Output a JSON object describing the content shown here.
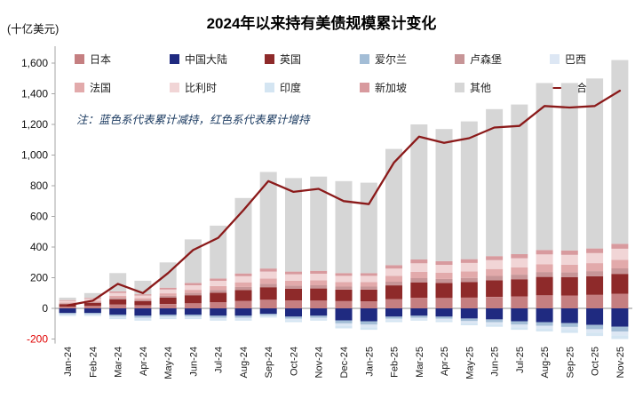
{
  "header": {
    "title": "2024年以来持有美债规模累计变化",
    "unit_label": "(十亿美元)",
    "note": "注：蓝色系代表累计减持，红色系代表累计增持"
  },
  "chart_data": {
    "type": "bar",
    "subtype": "stacked-bar-with-total-line",
    "title": "2024年以来持有美债规模累计变化",
    "ylabel": "(十亿美元)",
    "legend_position": "top",
    "grid": false,
    "axis": {
      "ymin": -200,
      "ymax": 1600,
      "ystep": 200,
      "tick_color": "#111111",
      "negative_tick_color": "#e00000"
    },
    "categories": [
      "Jan-24",
      "Feb-24",
      "Mar-24",
      "Apr-24",
      "May-24",
      "Jun-24",
      "Jul-24",
      "Aug-24",
      "Sep-24",
      "Oct-24",
      "Nov-24",
      "Dec-24",
      "Jan-25",
      "Feb-25",
      "Mar-25",
      "Apr-25",
      "May-25",
      "Jun-25",
      "Jul-25",
      "Aug-25",
      "Sep-25",
      "Oct-25",
      "Nov-25"
    ],
    "series": [
      {
        "name": "日本",
        "color": "#c57f81",
        "values": [
          12,
          16,
          25,
          20,
          28,
          34,
          40,
          48,
          56,
          52,
          52,
          48,
          46,
          60,
          70,
          68,
          70,
          75,
          78,
          85,
          84,
          88,
          95
        ]
      },
      {
        "name": "中国大陆",
        "color": "#1f2a80",
        "values": [
          -30,
          -30,
          -42,
          -48,
          -42,
          -42,
          -48,
          -48,
          -36,
          -54,
          -48,
          -78,
          -84,
          -54,
          -48,
          -54,
          -66,
          -72,
          -84,
          -90,
          -96,
          -108,
          -120
        ]
      },
      {
        "name": "英国",
        "color": "#8e2a2a",
        "values": [
          16,
          20,
          34,
          28,
          42,
          52,
          62,
          72,
          82,
          76,
          78,
          74,
          76,
          90,
          100,
          98,
          102,
          108,
          112,
          120,
          119,
          122,
          130
        ]
      },
      {
        "name": "爱尔兰",
        "color": "#a3bdd6",
        "values": [
          -8,
          -8,
          -11,
          -13,
          -11,
          -11,
          -13,
          -13,
          -10,
          -14,
          -13,
          -20,
          -22,
          -14,
          -13,
          -14,
          -17,
          -18,
          -22,
          -23,
          -25,
          -28,
          -31
        ]
      },
      {
        "name": "卢森堡",
        "color": "#c79597",
        "values": [
          5,
          6,
          10,
          8,
          12,
          15,
          18,
          20,
          22,
          20,
          21,
          20,
          20,
          24,
          27,
          26,
          27,
          29,
          30,
          32,
          32,
          33,
          36
        ]
      },
      {
        "name": "巴西",
        "color": "#dde7f4",
        "values": [
          -6,
          -6,
          -8,
          -9,
          -8,
          -8,
          -9,
          -9,
          -7,
          -11,
          -9,
          -16,
          -17,
          -11,
          -10,
          -11,
          -13,
          -15,
          -17,
          -18,
          -19,
          -22,
          -24
        ]
      },
      {
        "name": "法国",
        "color": "#e2aaab",
        "values": [
          6,
          8,
          12,
          10,
          16,
          20,
          25,
          30,
          35,
          32,
          33,
          30,
          30,
          38,
          42,
          40,
          42,
          45,
          47,
          50,
          50,
          52,
          56
        ]
      },
      {
        "name": "比利时",
        "color": "#f1d5d6",
        "values": [
          10,
          12,
          20,
          18,
          25,
          30,
          35,
          40,
          45,
          42,
          42,
          40,
          40,
          48,
          55,
          52,
          55,
          58,
          60,
          65,
          64,
          66,
          72
        ]
      },
      {
        "name": "印度",
        "color": "#d4e5f2",
        "values": [
          -6,
          -6,
          -9,
          -10,
          -9,
          -9,
          -10,
          -10,
          -7,
          -11,
          -10,
          -16,
          -17,
          -11,
          -9,
          -11,
          -14,
          -15,
          -17,
          -19,
          -20,
          -22,
          -25
        ]
      },
      {
        "name": "新加坡",
        "color": "#d89a9e",
        "values": [
          5,
          6,
          10,
          8,
          12,
          15,
          15,
          18,
          20,
          18,
          19,
          18,
          18,
          22,
          25,
          24,
          25,
          26,
          27,
          29,
          29,
          30,
          32
        ]
      },
      {
        "name": "其他",
        "color": "#d6d6d6",
        "values": [
          16,
          32,
          119,
          88,
          165,
          284,
          345,
          492,
          630,
          610,
          615,
          600,
          590,
          758,
          881,
          862,
          899,
          959,
          976,
          1089,
          1092,
          1109,
          1199
        ]
      }
    ],
    "line_series": {
      "name": "合计",
      "color": "#8b1a1a",
      "values": [
        20,
        50,
        160,
        100,
        230,
        380,
        460,
        640,
        830,
        760,
        780,
        700,
        680,
        950,
        1120,
        1080,
        1110,
        1180,
        1190,
        1320,
        1310,
        1320,
        1420
      ]
    }
  }
}
